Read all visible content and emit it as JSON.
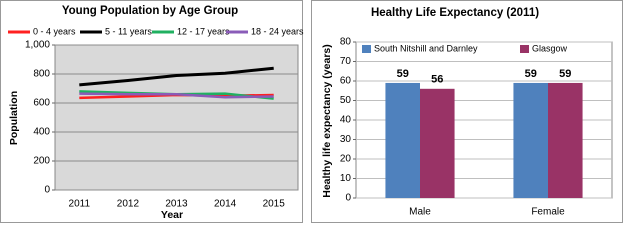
{
  "chart_data": [
    {
      "type": "line",
      "title": "Young Population by Age Group",
      "x_label": "Year",
      "y_label": "Population",
      "categories": [
        "2011",
        "2012",
        "2013",
        "2014",
        "2015"
      ],
      "series": [
        {
          "name": "0 - 4 years",
          "color": "#ff2020",
          "values": [
            635,
            645,
            655,
            650,
            655
          ]
        },
        {
          "name": "5 - 11 years",
          "color": "#000000",
          "values": [
            725,
            755,
            790,
            805,
            840
          ]
        },
        {
          "name": "12 - 17 years",
          "color": "#20b060",
          "values": [
            680,
            670,
            660,
            665,
            630
          ]
        },
        {
          "name": "18 - 24 years",
          "color": "#8a5cb8",
          "values": [
            665,
            660,
            660,
            640,
            645
          ]
        }
      ],
      "ylim": [
        0,
        1000
      ],
      "yticks": [
        0,
        200,
        400,
        600,
        800,
        {
          "value": 1000,
          "label": "1,000"
        }
      ],
      "grid": true,
      "background": "#d9d9d9",
      "legend": "top"
    },
    {
      "type": "bar",
      "title": "Healthy Life Expectancy (2011)",
      "y_label": "Healthy life expectancy (years)",
      "categories": [
        "Male",
        "Female"
      ],
      "series": [
        {
          "name": "South Nitshill and Darnley",
          "color": "#4f81bd",
          "values": [
            59,
            59
          ]
        },
        {
          "name": "Glasgow",
          "color": "#993366",
          "values": [
            56,
            59
          ]
        }
      ],
      "ylim": [
        0,
        80
      ],
      "yticks": [
        0,
        10,
        20,
        30,
        40,
        50,
        60,
        70,
        80
      ],
      "grid": true,
      "background": "#ffffff",
      "legend": "top",
      "data_labels": true
    }
  ]
}
